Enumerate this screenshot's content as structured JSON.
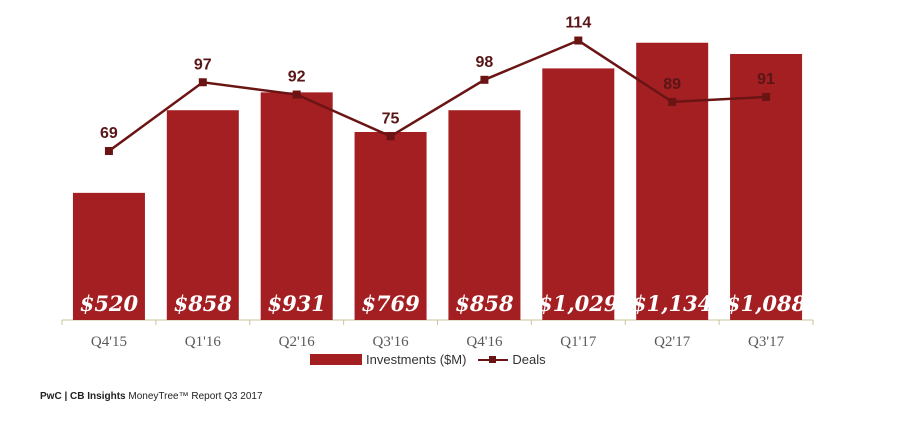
{
  "chart_data": {
    "type": "bar",
    "categories": [
      "Q4'15",
      "Q1'16",
      "Q2'16",
      "Q3'16",
      "Q4'16",
      "Q1'17",
      "Q2'17",
      "Q3'17"
    ],
    "series": [
      {
        "name": "Investments ($M)",
        "type": "bar",
        "values": [
          520,
          858,
          931,
          769,
          858,
          1029,
          1134,
          1088
        ],
        "labels": [
          "$520",
          "$858",
          "$931",
          "$769",
          "$858",
          "$1,029",
          "$1,134",
          "$1,088"
        ]
      },
      {
        "name": "Deals",
        "type": "line",
        "values": [
          69,
          97,
          92,
          75,
          98,
          114,
          89,
          91
        ],
        "labels": [
          "69",
          "97",
          "92",
          "75",
          "98",
          "114",
          "89",
          "91"
        ]
      }
    ],
    "colors": {
      "bar": "#a31f22",
      "line": "#6b1414",
      "axis": "#c9c49a"
    },
    "legend_position": "bottom",
    "grid": false
  },
  "legend": {
    "investments_label": "Investments ($M)",
    "deals_label": "Deals"
  },
  "footer": {
    "brand": "PwC | CB Insights",
    "rest": " MoneyTree™ Report Q3 2017"
  }
}
